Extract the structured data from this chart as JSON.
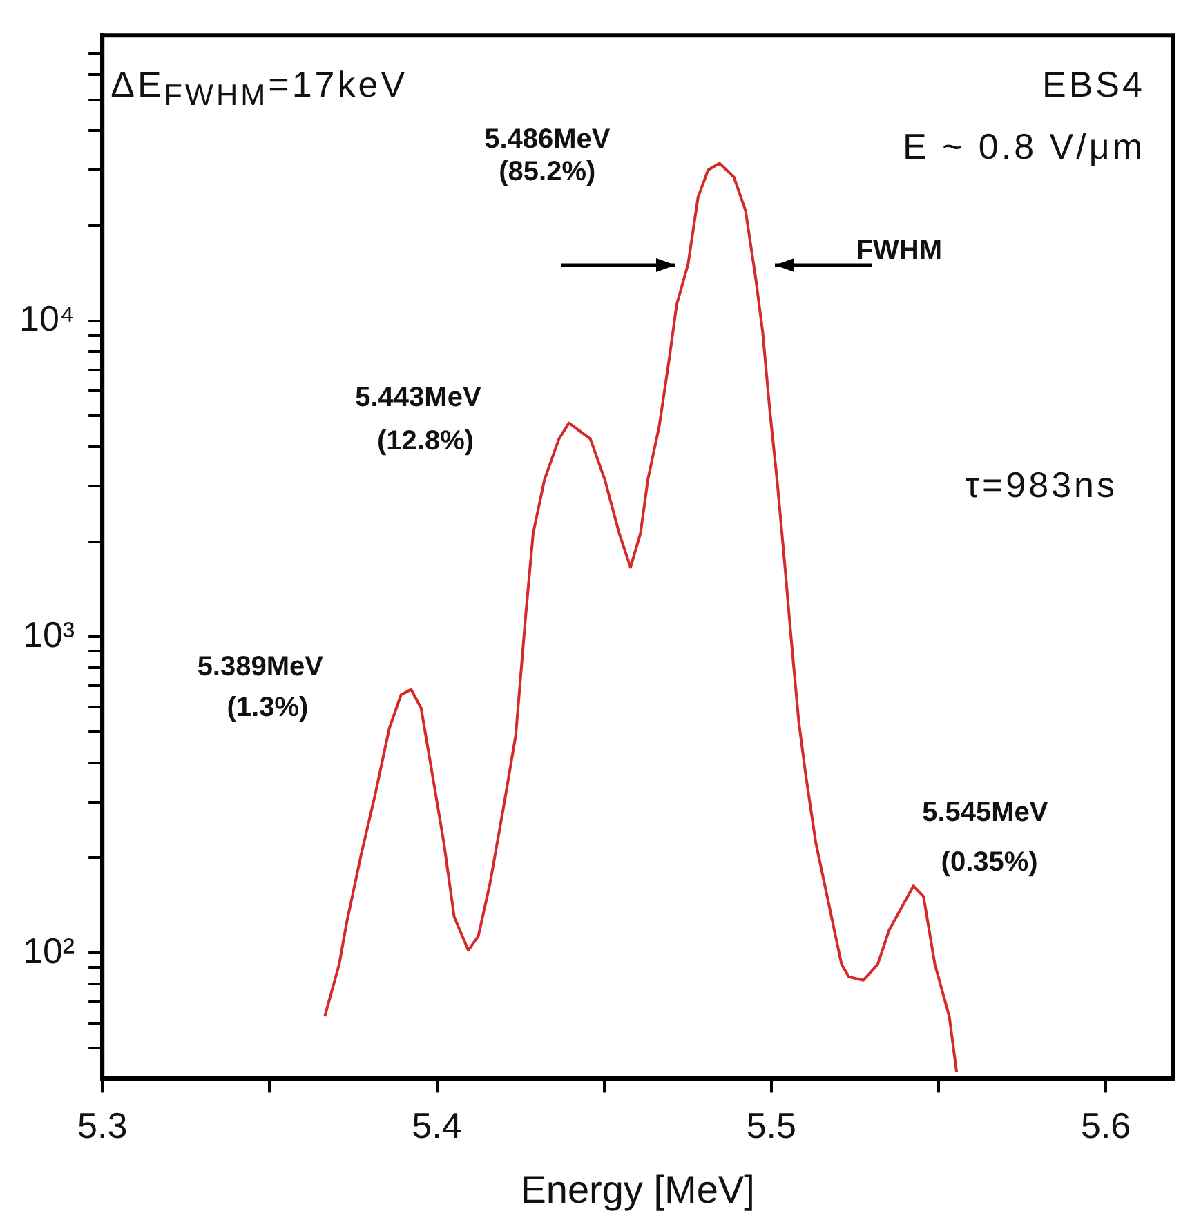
{
  "chart_data": {
    "type": "line",
    "xlabel": "Energy [MeV]",
    "log": "y",
    "grid": false,
    "legend": false,
    "marker": "none",
    "line_style": "solid",
    "xlim": [
      5.3,
      5.62
    ],
    "ylim": [
      40,
      80000
    ],
    "xticks": [
      5.3,
      {
        "value": 5.35,
        "label": null
      },
      5.4,
      {
        "value": 5.45,
        "label": null
      },
      5.5,
      {
        "value": 5.55,
        "label": null
      },
      5.6
    ],
    "yticks": [
      {
        "value": 50,
        "label": null
      },
      {
        "value": 60,
        "label": null
      },
      {
        "value": 70,
        "label": null
      },
      {
        "value": 80,
        "label": null
      },
      {
        "value": 90,
        "label": null
      },
      {
        "value": 100,
        "label": "10²"
      },
      {
        "value": 200,
        "label": null
      },
      {
        "value": 300,
        "label": null
      },
      {
        "value": 400,
        "label": null
      },
      {
        "value": 500,
        "label": null
      },
      {
        "value": 600,
        "label": null
      },
      {
        "value": 700,
        "label": null
      },
      {
        "value": 800,
        "label": null
      },
      {
        "value": 900,
        "label": null
      },
      {
        "value": 1000,
        "label": "10³"
      },
      {
        "value": 2000,
        "label": null
      },
      {
        "value": 3000,
        "label": null
      },
      {
        "value": 4000,
        "label": null
      },
      {
        "value": 5000,
        "label": null
      },
      {
        "value": 6000,
        "label": null
      },
      {
        "value": 7000,
        "label": null
      },
      {
        "value": 8000,
        "label": null
      },
      {
        "value": 9000,
        "label": null
      },
      {
        "value": 10000,
        "label": "10⁴"
      },
      {
        "value": 20000,
        "label": null
      },
      {
        "value": 30000,
        "label": null
      },
      {
        "value": 40000,
        "label": null
      },
      {
        "value": 50000,
        "label": null
      },
      {
        "value": 60000,
        "label": null
      },
      {
        "value": 70000,
        "label": null
      }
    ],
    "series": [
      {
        "color": "#d42a2a",
        "x": [
          5.3665,
          5.3708,
          5.373,
          5.3773,
          5.3815,
          5.3858,
          5.3893,
          5.3923,
          5.3953,
          5.3987,
          5.4021,
          5.4052,
          5.4094,
          5.4124,
          5.4159,
          5.4202,
          5.4236,
          5.4266,
          5.4288,
          5.4322,
          5.4365,
          5.4395,
          5.4459,
          5.4502,
          5.4545,
          5.4579,
          5.4609,
          5.4631,
          5.4665,
          5.4695,
          5.4717,
          5.4751,
          5.4781,
          5.4811,
          5.4845,
          5.4888,
          5.4923,
          5.4953,
          5.4974,
          5.4996,
          5.5017,
          5.5039,
          5.506,
          5.5082,
          5.5103,
          5.5133,
          5.5167,
          5.521,
          5.5232,
          5.5275,
          5.5318,
          5.5352,
          5.5425,
          5.5455,
          5.5489,
          5.5532,
          5.5554
        ],
        "values": [
          63,
          92,
          124,
          203,
          315,
          514,
          656,
          682,
          595,
          365,
          223,
          130,
          102,
          113,
          166,
          300,
          489,
          1180,
          2130,
          3150,
          4230,
          4750,
          4230,
          3150,
          2130,
          1660,
          2130,
          3150,
          4650,
          7610,
          11250,
          15100,
          24600,
          30000,
          31500,
          28500,
          22300,
          13700,
          9250,
          5140,
          3150,
          1750,
          970,
          540,
          365,
          223,
          151,
          92,
          84,
          82,
          92,
          118,
          163,
          151,
          92,
          63,
          42
        ]
      }
    ],
    "annotations": [
      "ΔE$_{FWHM}$=17keV",
      "EBS4",
      "E ~ 0.8 V/μm",
      "τ=983ns",
      "5.486MeV",
      "(85.2%)",
      "5.443MeV",
      "(12.8%)",
      "5.389MeV",
      "(1.3%)",
      "5.545MeV",
      "(0.35%)",
      "FWHM"
    ]
  }
}
